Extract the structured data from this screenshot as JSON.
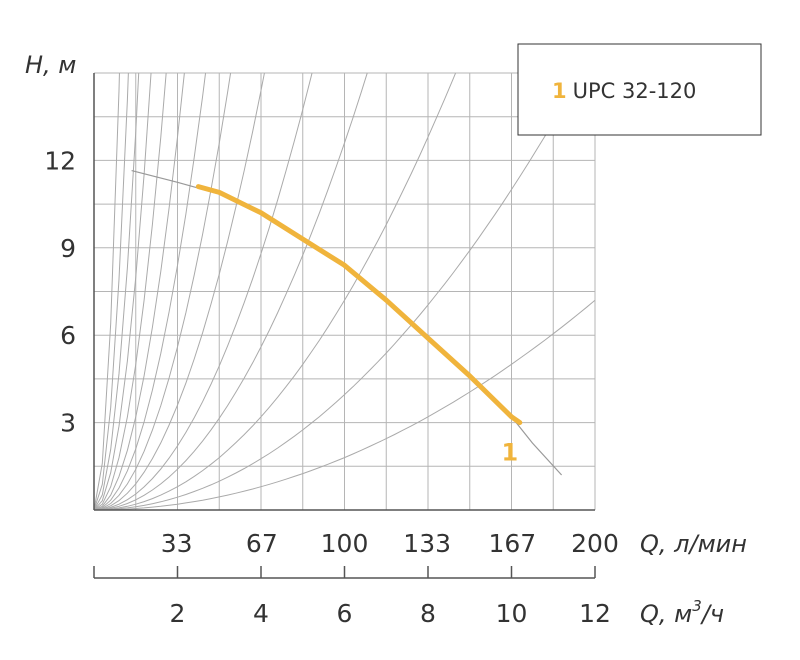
{
  "chart_data": {
    "type": "line",
    "title": "",
    "y_axis": {
      "label": "H, м",
      "ticks": [
        3,
        6,
        9,
        12
      ],
      "range": [
        0,
        15
      ]
    },
    "x_axis_primary": {
      "label": "Q, л/мин",
      "ticks": [
        33,
        67,
        100,
        133,
        167,
        200
      ],
      "range": [
        0,
        200
      ]
    },
    "x_axis_secondary": {
      "label_prefix": "Q, м",
      "label_sup": "3",
      "label_suffix": "/ч",
      "ticks": [
        2,
        4,
        6,
        8,
        10,
        12
      ],
      "range": [
        0,
        12
      ]
    },
    "grid": true,
    "legend": {
      "position": "top-right",
      "number": "1",
      "text": "UPC 32-120"
    },
    "series": [
      {
        "label": "1",
        "color": "#f0b43c",
        "x": [
          2.5,
          3,
          4,
          5,
          6,
          7,
          8,
          9,
          9.5,
          10,
          10.2
        ],
        "y": [
          11.1,
          10.9,
          10.2,
          9.3,
          8.4,
          7.2,
          5.9,
          4.6,
          3.9,
          3.2,
          3.0
        ]
      }
    ],
    "extension_line": {
      "color": "#999999",
      "x": [
        0.9,
        2,
        3,
        4,
        5,
        6,
        7,
        8,
        9,
        10,
        10.5,
        11.2
      ],
      "y": [
        11.65,
        11.25,
        10.85,
        10.2,
        9.3,
        8.4,
        7.2,
        5.9,
        4.6,
        3.2,
        2.3,
        1.2
      ]
    },
    "system_curves": {
      "color": "#aaaaaa",
      "k": [
        0.05,
        0.11,
        0.2,
        0.35,
        0.55,
        0.9,
        1.4,
        2.1,
        3.2,
        5.0,
        8.0,
        13.0,
        22.0,
        40.0
      ]
    }
  }
}
